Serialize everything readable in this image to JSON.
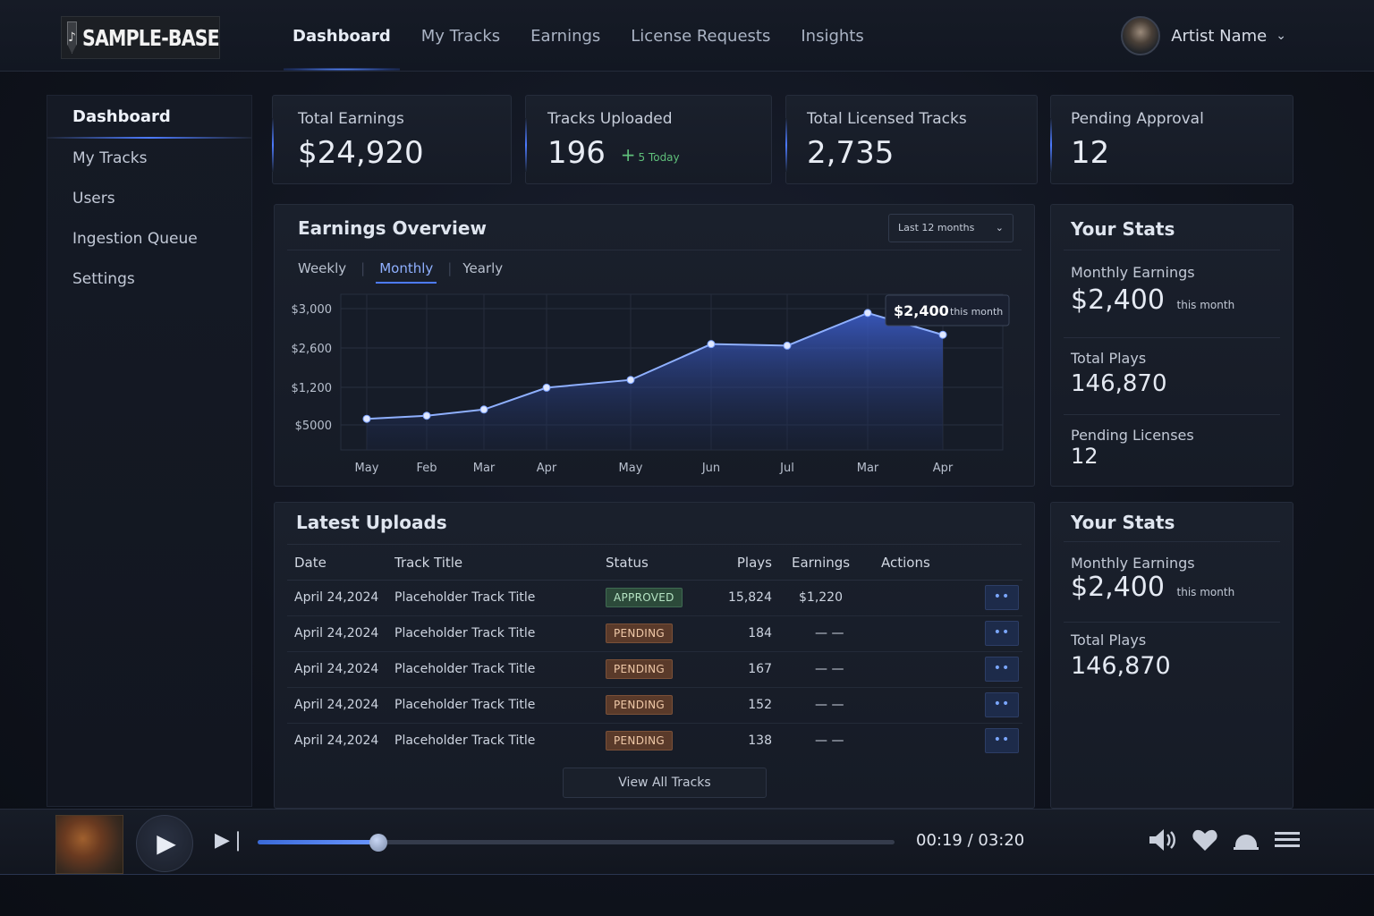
{
  "brand": {
    "name": "SAMPLE-BASE"
  },
  "topnav": [
    "Dashboard",
    "My Tracks",
    "Earnings",
    "License Requests",
    "Insights"
  ],
  "user": {
    "name": "Artist Name"
  },
  "sidebar": [
    "Dashboard",
    "My Tracks",
    "Users",
    "Ingestion Queue",
    "Settings"
  ],
  "stats": {
    "total_earnings": {
      "label": "Total Earnings",
      "value": "$24,920"
    },
    "tracks_uploaded": {
      "label": "Tracks Uploaded",
      "value": "196",
      "sub": "5 Today"
    },
    "total_licensed": {
      "label": "Total Licensed Tracks",
      "value": "2,735"
    },
    "pending_approval": {
      "label": "Pending Approval",
      "value": "12"
    }
  },
  "earnings_overview": {
    "title": "Earnings Overview",
    "range": "Last 12 months",
    "tabs": [
      "Weekly",
      "Monthly",
      "Yearly"
    ],
    "tooltip": {
      "value": "$2,400",
      "suffix": "this month"
    }
  },
  "chart_data": {
    "type": "area",
    "title": "Earnings Overview",
    "categories": [
      "May",
      "Feb",
      "Mar",
      "Apr",
      "May",
      "Jun",
      "Jul",
      "Mar",
      "Apr"
    ],
    "y_tick_labels": [
      "$3,000",
      "$2,600",
      "$1,200",
      "$5000"
    ],
    "values_rel": [
      0.2,
      0.22,
      0.26,
      0.4,
      0.45,
      0.68,
      0.67,
      0.88,
      0.74
    ],
    "grid": true
  },
  "your_stats_1": {
    "title": "Your Stats",
    "monthly_label": "Monthly Earnings",
    "monthly_value": "$2,400",
    "monthly_suffix": "this month",
    "plays_label": "Total Plays",
    "plays_value": "146,870",
    "pending_label": "Pending Licenses",
    "pending_value": "12"
  },
  "your_stats_2": {
    "title": "Your Stats",
    "monthly_label": "Monthly Earnings",
    "monthly_value": "$2,400",
    "monthly_suffix": "this month",
    "plays_label": "Total Plays",
    "plays_value": "146,870"
  },
  "uploads": {
    "title": "Latest Uploads",
    "columns": [
      "Date",
      "Track Title",
      "Status",
      "Plays",
      "Earnings",
      "Actions"
    ],
    "rows": [
      {
        "date": "April 24,2024",
        "title": "Placeholder Track Title",
        "status": "APPROVED",
        "plays": "15,824",
        "earnings": "$1,220"
      },
      {
        "date": "April 24,2024",
        "title": "Placeholder Track Title",
        "status": "PENDING",
        "plays": "184",
        "earnings": "— —"
      },
      {
        "date": "April 24,2024",
        "title": "Placeholder Track Title",
        "status": "PENDING",
        "plays": "167",
        "earnings": "— —"
      },
      {
        "date": "April 24,2024",
        "title": "Placeholder Track Title",
        "status": "PENDING",
        "plays": "152",
        "earnings": "— —"
      },
      {
        "date": "April 24,2024",
        "title": "Placeholder Track Title",
        "status": "PENDING",
        "plays": "138",
        "earnings": "— —"
      }
    ],
    "view_all": "View All Tracks"
  },
  "player": {
    "time": "00:19 / 03:20",
    "progress": 0.19,
    "icons": [
      "volume-icon",
      "heart-icon",
      "headphones-icon",
      "queue-icon"
    ]
  },
  "colors": {
    "accent": "#4d7bff",
    "approved": "#2c4a3a",
    "pending": "#5a3a2a",
    "background": "#10141e"
  }
}
